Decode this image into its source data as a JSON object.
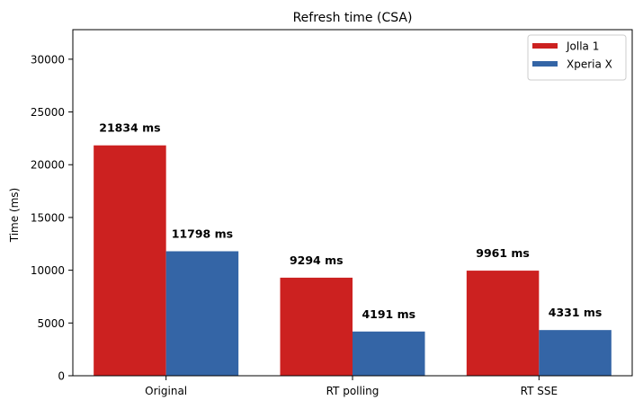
{
  "chart_data": {
    "type": "bar",
    "title": "Refresh time (CSA)",
    "xlabel": "",
    "ylabel": "Time (ms)",
    "categories": [
      "Original",
      "RT polling",
      "RT SSE"
    ],
    "series": [
      {
        "name": "Jolla 1",
        "values": [
          21834,
          9294,
          9961
        ],
        "labels": [
          "21834 ms",
          "9294 ms",
          "9961 ms"
        ],
        "color": "#cc2120"
      },
      {
        "name": "Xperia X",
        "values": [
          11798,
          4191,
          4331
        ],
        "labels": [
          "11798 ms",
          "4191 ms",
          "4331 ms"
        ],
        "color": "#3465a6"
      }
    ],
    "ylim": [
      0,
      32800
    ],
    "yticks": [
      0,
      5000,
      10000,
      15000,
      20000,
      25000,
      30000
    ],
    "ytick_labels": [
      "0",
      "5000",
      "10000",
      "15000",
      "20000",
      "25000",
      "30000"
    ],
    "grid": false,
    "legend_position": "top-right"
  }
}
